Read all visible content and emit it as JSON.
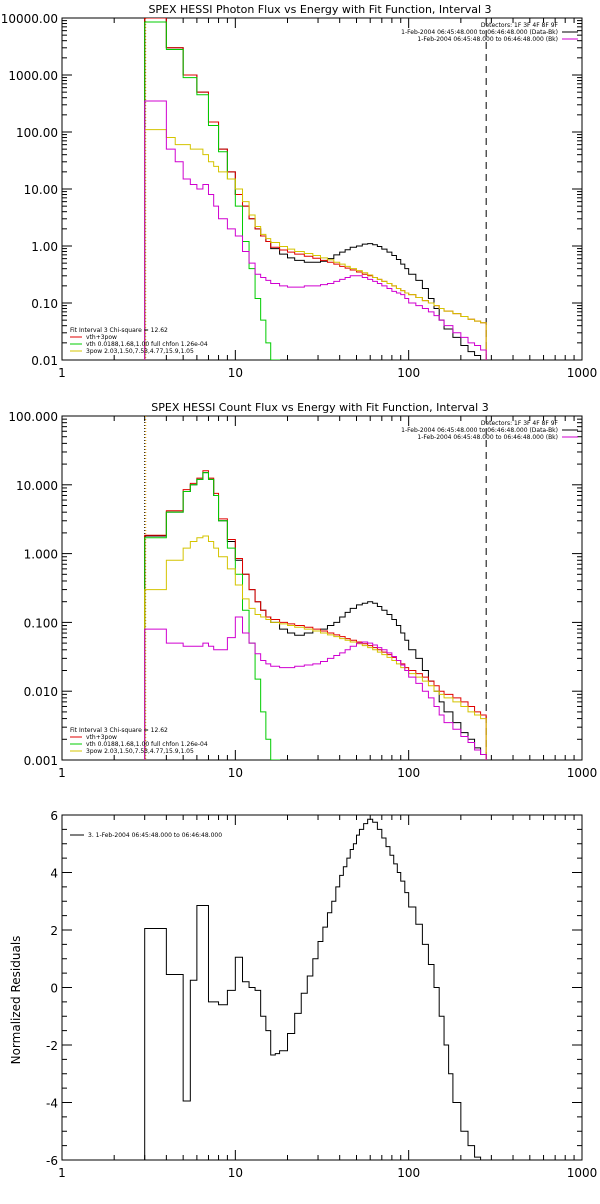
{
  "chart_data": [
    {
      "type": "line",
      "panel_id": "photon",
      "title": "SPEX HESSI Photon Flux vs Energy with Fit Function, Interval 3",
      "xlabel": "",
      "ylabel": "",
      "xscale": "log",
      "yscale": "log",
      "xlim": [
        1,
        1000
      ],
      "ylim": [
        0.01,
        10000
      ],
      "x_ticks": [
        {
          "v": 1,
          "label": "1"
        },
        {
          "v": 10,
          "label": "10"
        },
        {
          "v": 100,
          "label": "100"
        },
        {
          "v": 1000,
          "label": "1000"
        }
      ],
      "y_ticks": [
        {
          "v": 10000,
          "label": "10000.00"
        },
        {
          "v": 1000,
          "label": "1000.00"
        },
        {
          "v": 100,
          "label": "100.00"
        },
        {
          "v": 10,
          "label": "10.00"
        },
        {
          "v": 1,
          "label": "1.00"
        },
        {
          "v": 0.1,
          "label": "0.10"
        },
        {
          "v": 0.01,
          "label": "0.01"
        }
      ],
      "vlines": [
        {
          "x": 3,
          "color": "#000000",
          "style": "dotted"
        },
        {
          "x": 3,
          "color": "#e8a000",
          "style": "dotted"
        },
        {
          "x": 280,
          "color": "#000000",
          "style": "dashed"
        }
      ],
      "legend_top_right": [
        {
          "text": "Detectors: 1F 3F 4F 8F 9F",
          "color": ""
        },
        {
          "text": "1-Feb-2004 06:45:48.000 to 06:46:48.000 (Data-Bk)",
          "color": "#000000"
        },
        {
          "text": "1-Feb-2004 06:45:48.000 to 06:46:48.000 (Bk)",
          "color": "#d000d0"
        }
      ],
      "legend_bottom_left": [
        {
          "text": "Fit Interval 3   Chi-square = 12.62",
          "color": ""
        },
        {
          "text": "vth+3pow",
          "color": "#e00000"
        },
        {
          "text": "vth 0.0188,1.68,1.00  full chfon 1.26e-04",
          "color": "#00cc00"
        },
        {
          "text": "3pow 2.03,1.50,7.53,4.77,15.9,1.05",
          "color": "#d4c400"
        }
      ],
      "bin_edges": [
        3,
        3.5,
        4,
        4.5,
        5,
        5.5,
        6,
        6.5,
        7,
        7.5,
        8,
        9,
        10,
        11,
        12,
        13,
        14,
        15,
        16,
        18,
        20,
        22,
        25,
        28,
        31,
        34,
        37,
        40,
        43,
        46,
        50,
        54,
        58,
        62,
        66,
        70,
        75,
        80,
        85,
        90,
        95,
        100,
        110,
        120,
        130,
        140,
        150,
        160,
        180,
        200,
        220,
        240,
        260,
        280
      ],
      "series": [
        {
          "name": "",
          "color": "#000000",
          "values": [
            10000,
            10000,
            3000,
            3000,
            1000,
            1000,
            500,
            500,
            150,
            150,
            50,
            20,
            8,
            5,
            3,
            2,
            1.5,
            1.2,
            0.9,
            0.72,
            0.62,
            0.56,
            0.52,
            0.52,
            0.54,
            0.6,
            0.7,
            0.78,
            0.86,
            0.95,
            1.0,
            1.08,
            1.1,
            1.05,
            0.98,
            0.88,
            0.78,
            0.68,
            0.58,
            0.48,
            0.4,
            0.32,
            0.25,
            0.18,
            0.12,
            0.08,
            0.05,
            0.035,
            0.025,
            0.018,
            0.014,
            0.012,
            0.01
          ]
        },
        {
          "name": "",
          "color": "#e00000",
          "values": [
            10000,
            10000,
            3000,
            3000,
            1000,
            1000,
            500,
            500,
            150,
            150,
            50,
            20,
            8,
            5,
            3,
            2,
            1.5,
            1.2,
            0.95,
            0.85,
            0.78,
            0.72,
            0.66,
            0.61,
            0.56,
            0.52,
            0.48,
            0.44,
            0.41,
            0.38,
            0.35,
            0.32,
            0.3,
            0.28,
            0.26,
            0.24,
            0.22,
            0.2,
            0.18,
            0.165,
            0.15,
            0.14,
            0.125,
            0.11,
            0.1,
            0.09,
            0.08,
            0.072,
            0.065,
            0.058,
            0.052,
            0.048,
            0.045
          ]
        },
        {
          "name": "",
          "color": "#00cc00",
          "values": [
            8500,
            8500,
            2800,
            2800,
            900,
            900,
            450,
            450,
            130,
            130,
            45,
            15,
            5,
            1.2,
            0.4,
            0.12,
            0.05,
            0.02,
            0.01
          ]
        },
        {
          "name": "",
          "color": "#d4c400",
          "values": [
            110,
            110,
            80,
            60,
            60,
            50,
            50,
            40,
            30,
            25,
            20,
            15,
            10,
            6,
            3.5,
            2.2,
            1.6,
            1.35,
            1.15,
            0.98,
            0.88,
            0.8,
            0.74,
            0.68,
            0.62,
            0.57,
            0.52,
            0.48,
            0.44,
            0.4,
            0.37,
            0.34,
            0.31,
            0.28,
            0.26,
            0.24,
            0.22,
            0.2,
            0.18,
            0.165,
            0.15,
            0.14,
            0.125,
            0.11,
            0.1,
            0.09,
            0.08,
            0.072,
            0.065,
            0.058,
            0.052,
            0.048,
            0.045
          ]
        },
        {
          "name": "",
          "color": "#d000d0",
          "values": [
            350,
            350,
            50,
            30,
            15,
            12,
            10,
            12,
            8,
            5,
            3,
            2,
            1.5,
            0.8,
            0.5,
            0.32,
            0.28,
            0.25,
            0.22,
            0.2,
            0.19,
            0.19,
            0.2,
            0.2,
            0.21,
            0.22,
            0.24,
            0.26,
            0.28,
            0.3,
            0.3,
            0.28,
            0.26,
            0.24,
            0.22,
            0.2,
            0.18,
            0.16,
            0.15,
            0.14,
            0.12,
            0.1,
            0.09,
            0.08,
            0.07,
            0.06,
            0.05,
            0.04,
            0.03,
            0.025,
            0.02,
            0.018,
            0.015
          ]
        }
      ]
    },
    {
      "type": "line",
      "panel_id": "count",
      "title": "SPEX HESSI Count Flux vs Energy with Fit Function, Interval 3",
      "xlabel": "",
      "ylabel": "",
      "xscale": "log",
      "yscale": "log",
      "xlim": [
        1,
        1000
      ],
      "ylim": [
        0.001,
        100
      ],
      "x_ticks": [
        {
          "v": 1,
          "label": "1"
        },
        {
          "v": 10,
          "label": "10"
        },
        {
          "v": 100,
          "label": "100"
        },
        {
          "v": 1000,
          "label": "1000"
        }
      ],
      "y_ticks": [
        {
          "v": 100,
          "label": "100.000"
        },
        {
          "v": 10,
          "label": "10.000"
        },
        {
          "v": 1,
          "label": "1.000"
        },
        {
          "v": 0.1,
          "label": "0.100"
        },
        {
          "v": 0.01,
          "label": "0.010"
        },
        {
          "v": 0.001,
          "label": "0.001"
        }
      ],
      "vlines": [
        {
          "x": 3,
          "color": "#000000",
          "style": "dotted"
        },
        {
          "x": 3,
          "color": "#e8a000",
          "style": "dotted"
        },
        {
          "x": 280,
          "color": "#000000",
          "style": "dashed"
        }
      ],
      "legend_top_right": [
        {
          "text": "Detectors: 1F 3F 4F 8F 9F",
          "color": ""
        },
        {
          "text": "1-Feb-2004 06:45:48.000 to 06:46:48.000 (Data-Bk)",
          "color": "#000000"
        },
        {
          "text": "1-Feb-2004 06:45:48.000 to 06:46:48.000 (Bk)",
          "color": "#d000d0"
        }
      ],
      "legend_bottom_left": [
        {
          "text": "Fit Interval 3   Chi-square = 12.62",
          "color": ""
        },
        {
          "text": "vth+3pow",
          "color": "#e00000"
        },
        {
          "text": "vth 0.0188,1.68,1.00  full chfon 1.26e-04",
          "color": "#00cc00"
        },
        {
          "text": "3pow 2.03,1.50,7.53,4.77,15.9,1.05",
          "color": "#d4c400"
        }
      ],
      "bin_edges": [
        3,
        3.5,
        4,
        4.5,
        5,
        5.5,
        6,
        6.5,
        7,
        7.5,
        8,
        9,
        10,
        11,
        12,
        13,
        14,
        15,
        16,
        18,
        20,
        22,
        25,
        28,
        31,
        34,
        37,
        40,
        43,
        46,
        50,
        54,
        58,
        62,
        66,
        70,
        75,
        80,
        85,
        90,
        95,
        100,
        110,
        120,
        130,
        140,
        150,
        160,
        180,
        200,
        220,
        240,
        260,
        280
      ],
      "series": [
        {
          "name": "",
          "color": "#000000",
          "values": [
            1.8,
            1.8,
            4,
            4,
            8,
            10,
            12,
            15,
            12,
            7,
            3,
            1.5,
            0.8,
            0.5,
            0.3,
            0.2,
            0.15,
            0.12,
            0.1,
            0.08,
            0.07,
            0.065,
            0.07,
            0.075,
            0.08,
            0.09,
            0.1,
            0.12,
            0.14,
            0.16,
            0.18,
            0.19,
            0.2,
            0.19,
            0.17,
            0.15,
            0.13,
            0.11,
            0.09,
            0.07,
            0.055,
            0.04,
            0.03,
            0.02,
            0.014,
            0.01,
            0.007,
            0.005,
            0.0035,
            0.0025,
            0.002,
            0.0015,
            0.0012
          ]
        },
        {
          "name": "",
          "color": "#e00000",
          "values": [
            1.85,
            1.85,
            4.2,
            4.2,
            8.5,
            10.5,
            12.5,
            16,
            12.5,
            7.5,
            3.2,
            1.6,
            0.85,
            0.5,
            0.3,
            0.2,
            0.15,
            0.12,
            0.11,
            0.1,
            0.095,
            0.09,
            0.085,
            0.08,
            0.075,
            0.07,
            0.066,
            0.062,
            0.058,
            0.055,
            0.052,
            0.049,
            0.046,
            0.043,
            0.04,
            0.037,
            0.034,
            0.031,
            0.028,
            0.025,
            0.022,
            0.02,
            0.018,
            0.016,
            0.014,
            0.012,
            0.01,
            0.009,
            0.008,
            0.007,
            0.006,
            0.005,
            0.0045
          ]
        },
        {
          "name": "",
          "color": "#00cc00",
          "values": [
            1.7,
            1.7,
            4,
            4,
            8,
            10,
            12,
            15,
            12,
            7,
            3,
            1.2,
            0.5,
            0.15,
            0.05,
            0.015,
            0.005,
            0.002,
            0.001
          ]
        },
        {
          "name": "",
          "color": "#d4c400",
          "values": [
            0.3,
            0.3,
            0.8,
            0.8,
            1.2,
            1.5,
            1.7,
            1.8,
            1.5,
            1.2,
            0.9,
            0.6,
            0.35,
            0.22,
            0.16,
            0.13,
            0.12,
            0.11,
            0.1,
            0.095,
            0.09,
            0.085,
            0.08,
            0.075,
            0.07,
            0.066,
            0.062,
            0.058,
            0.055,
            0.052,
            0.049,
            0.046,
            0.043,
            0.04,
            0.037,
            0.034,
            0.031,
            0.028,
            0.025,
            0.022,
            0.02,
            0.018,
            0.016,
            0.014,
            0.012,
            0.01,
            0.009,
            0.008,
            0.007,
            0.006,
            0.005,
            0.0045,
            0.004
          ]
        },
        {
          "name": "",
          "color": "#d000d0",
          "values": [
            0.08,
            0.08,
            0.05,
            0.05,
            0.045,
            0.045,
            0.045,
            0.05,
            0.045,
            0.04,
            0.04,
            0.06,
            0.12,
            0.07,
            0.05,
            0.035,
            0.028,
            0.025,
            0.023,
            0.022,
            0.022,
            0.023,
            0.024,
            0.025,
            0.027,
            0.03,
            0.033,
            0.036,
            0.04,
            0.045,
            0.05,
            0.052,
            0.05,
            0.047,
            0.043,
            0.04,
            0.036,
            0.032,
            0.028,
            0.024,
            0.02,
            0.016,
            0.013,
            0.01,
            0.008,
            0.006,
            0.0045,
            0.0035,
            0.0028,
            0.0022,
            0.0018,
            0.0014,
            0.0012
          ]
        }
      ]
    },
    {
      "type": "line",
      "panel_id": "residuals",
      "title": "",
      "xlabel": "",
      "ylabel": "Normalized Residuals",
      "xscale": "log",
      "yscale": "linear",
      "xlim": [
        1,
        1000
      ],
      "ylim": [
        -6,
        6
      ],
      "x_ticks": [
        {
          "v": 1,
          "label": "1"
        },
        {
          "v": 10,
          "label": "10"
        },
        {
          "v": 100,
          "label": "100"
        },
        {
          "v": 1000,
          "label": "1000"
        }
      ],
      "y_ticks": [
        {
          "v": 6,
          "label": "6"
        },
        {
          "v": 4,
          "label": "4"
        },
        {
          "v": 2,
          "label": "2"
        },
        {
          "v": 0,
          "label": "0"
        },
        {
          "v": -2,
          "label": "-2"
        },
        {
          "v": -4,
          "label": "-4"
        },
        {
          "v": -6,
          "label": "-6"
        }
      ],
      "vlines": [],
      "legend_top_right": [],
      "legend_bottom_left": [],
      "legend_top_left": [
        {
          "text": "3.  1-Feb-2004 06:45:48.000 to 06:46:48.000",
          "color": "#000000"
        }
      ],
      "bin_edges": [
        3,
        4,
        5,
        5.5,
        6,
        7,
        8,
        9,
        10,
        11,
        12,
        13,
        14,
        15,
        16,
        17,
        18,
        20,
        22,
        24,
        26,
        28,
        30,
        32,
        34,
        36,
        38,
        40,
        42,
        44,
        46,
        48,
        50,
        52,
        55,
        58,
        62,
        66,
        70,
        74,
        78,
        82,
        86,
        90,
        95,
        100,
        110,
        120,
        130,
        140,
        150,
        160,
        170,
        180,
        200,
        220,
        240,
        260,
        280
      ],
      "series": [
        {
          "name": "",
          "color": "#000000",
          "values": [
            2.05,
            0.45,
            -3.95,
            0.25,
            2.85,
            -0.5,
            -0.6,
            -0.1,
            1.05,
            0.2,
            0.0,
            -0.1,
            -1.0,
            -1.5,
            -2.35,
            -2.3,
            -2.2,
            -1.6,
            -0.9,
            -0.2,
            0.4,
            1.0,
            1.6,
            2.1,
            2.6,
            3.0,
            3.5,
            3.9,
            4.2,
            4.5,
            4.8,
            5.0,
            5.3,
            5.5,
            5.7,
            5.85,
            5.75,
            5.5,
            5.2,
            4.9,
            4.6,
            4.3,
            4.0,
            3.7,
            3.3,
            2.8,
            2.2,
            1.5,
            0.8,
            0.0,
            -1.0,
            -2.0,
            -3.0,
            -4.0,
            -5.0,
            -5.5,
            -5.9,
            -6.0
          ]
        }
      ]
    }
  ]
}
